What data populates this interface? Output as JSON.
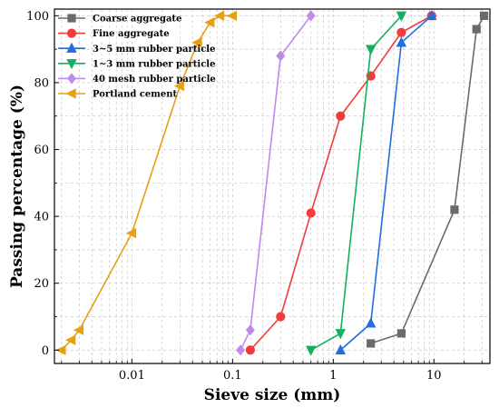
{
  "chart_data": {
    "type": "line",
    "xscale": "log",
    "xlabel": "Sieve size (mm)",
    "ylabel": "Passing percentage (%)",
    "xlim": [
      0.0017,
      36
    ],
    "ylim": [
      -4,
      102
    ],
    "x_ticks": [
      0.01,
      0.1,
      1,
      10
    ],
    "x_tick_labels": [
      "0.01",
      "0.1",
      "1",
      "10"
    ],
    "y_ticks": [
      0,
      20,
      40,
      60,
      80,
      100
    ],
    "y_tick_labels": [
      "0",
      "20",
      "40",
      "60",
      "80",
      "100"
    ],
    "grid": true,
    "legend_position": "top-left",
    "series": [
      {
        "name": "Coarse aggregate",
        "marker": "square",
        "color": "#6a6a6a",
        "x": [
          2.36,
          4.75,
          16,
          26.5,
          31.5
        ],
        "y": [
          2,
          5,
          42,
          96,
          100
        ]
      },
      {
        "name": "Fine aggregate",
        "marker": "circle",
        "color": "#f23b3b",
        "x": [
          0.15,
          0.3,
          0.6,
          1.18,
          2.36,
          4.75,
          9.5
        ],
        "y": [
          0,
          10,
          41,
          70,
          82,
          95,
          100
        ]
      },
      {
        "name": "3~5 mm rubber particle",
        "marker": "triangle-up",
        "color": "#1f6fe0",
        "x": [
          1.18,
          2.36,
          4.75,
          9.5
        ],
        "y": [
          0,
          8,
          92,
          100
        ]
      },
      {
        "name": "1~3 mm rubber particle",
        "marker": "triangle-down",
        "color": "#12b060",
        "x": [
          0.6,
          1.18,
          2.36,
          4.75
        ],
        "y": [
          0,
          5,
          90,
          100
        ]
      },
      {
        "name": "40 mesh rubber particle",
        "marker": "diamond",
        "color": "#c08ae8",
        "x": [
          0.12,
          0.15,
          0.3,
          0.6
        ],
        "y": [
          0,
          6,
          88,
          100
        ]
      },
      {
        "name": "Portland cement",
        "marker": "triangle-left",
        "color": "#e6a012",
        "x": [
          0.002,
          0.0025,
          0.003,
          0.01,
          0.03,
          0.045,
          0.06,
          0.075,
          0.1
        ],
        "y": [
          0,
          3,
          6,
          35,
          79,
          92,
          98,
          100,
          100
        ]
      }
    ]
  }
}
